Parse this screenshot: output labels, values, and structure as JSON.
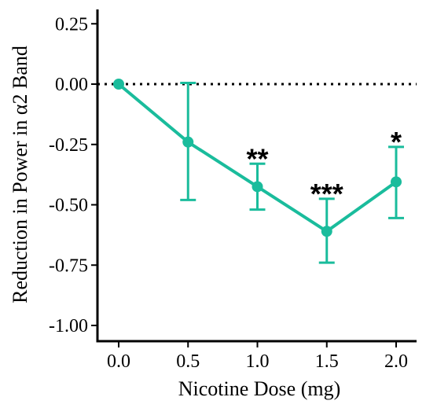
{
  "chart_data": {
    "type": "line",
    "title": "",
    "xlabel": "Nicotine Dose (mg)",
    "ylabel": "Reduction in Power in  α2 Band",
    "xlim": [
      -0.15,
      2.15
    ],
    "ylim": [
      -1.05,
      0.31
    ],
    "x_ticks": [
      "0.0",
      "0.5",
      "1.0",
      "1.5",
      "2.0"
    ],
    "y_ticks": [
      "0.25",
      "0.00",
      "-0.25",
      "-0.50",
      "-0.75",
      "-1.00"
    ],
    "reference_line": {
      "y": 0.0,
      "style": "dotted"
    },
    "grid": false,
    "legend": "none",
    "colors": {
      "series": "#1abc9c",
      "axis": "#000000"
    },
    "series": [
      {
        "x": [
          0.0,
          0.5,
          1.0,
          1.5,
          2.0
        ],
        "y": [
          0.0,
          -0.24,
          -0.425,
          -0.61,
          -0.405
        ],
        "error_low": [
          0.0,
          -0.48,
          -0.52,
          -0.74,
          -0.555
        ],
        "error_high": [
          0.0,
          0.005,
          -0.33,
          -0.475,
          -0.26
        ],
        "significance": [
          "",
          "",
          "**",
          "***",
          "*"
        ]
      }
    ]
  }
}
